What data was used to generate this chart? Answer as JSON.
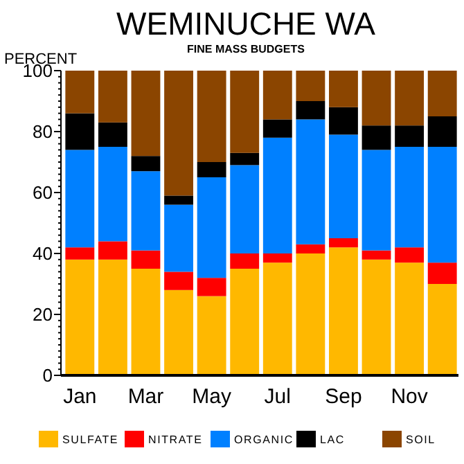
{
  "chart_data": {
    "type": "bar",
    "title": "WEMINUCHE WA",
    "subtitle": "FINE MASS BUDGETS",
    "ylabel": "PERCENT",
    "stacked": true,
    "categories": [
      "Jan",
      null,
      "Mar",
      null,
      "May",
      null,
      "Jul",
      null,
      "Sep",
      null,
      "Nov",
      null
    ],
    "series": [
      {
        "name": "SULFATE",
        "color": "#ffb800",
        "values": [
          38,
          38,
          35,
          28,
          26,
          35,
          37,
          40,
          42,
          38,
          37,
          30
        ]
      },
      {
        "name": "NITRATE",
        "color": "#ff0000",
        "values": [
          4,
          6,
          6,
          6,
          6,
          5,
          3,
          3,
          3,
          3,
          5,
          7
        ]
      },
      {
        "name": "ORGANIC",
        "color": "#0080ff",
        "values": [
          32,
          31,
          26,
          22,
          33,
          29,
          38,
          41,
          34,
          33,
          33,
          38
        ]
      },
      {
        "name": "LAC",
        "color": "#000000",
        "values": [
          12,
          8,
          5,
          3,
          5,
          4,
          6,
          6,
          9,
          8,
          7,
          10
        ]
      },
      {
        "name": "SOIL",
        "color": "#8b4500",
        "values": [
          14,
          17,
          28,
          41,
          30,
          27,
          16,
          10,
          12,
          18,
          18,
          15
        ]
      }
    ],
    "ylim": [
      0,
      100
    ],
    "yticks": [
      0,
      20,
      40,
      60,
      80,
      100
    ],
    "grid": false,
    "legend": "bottom"
  }
}
